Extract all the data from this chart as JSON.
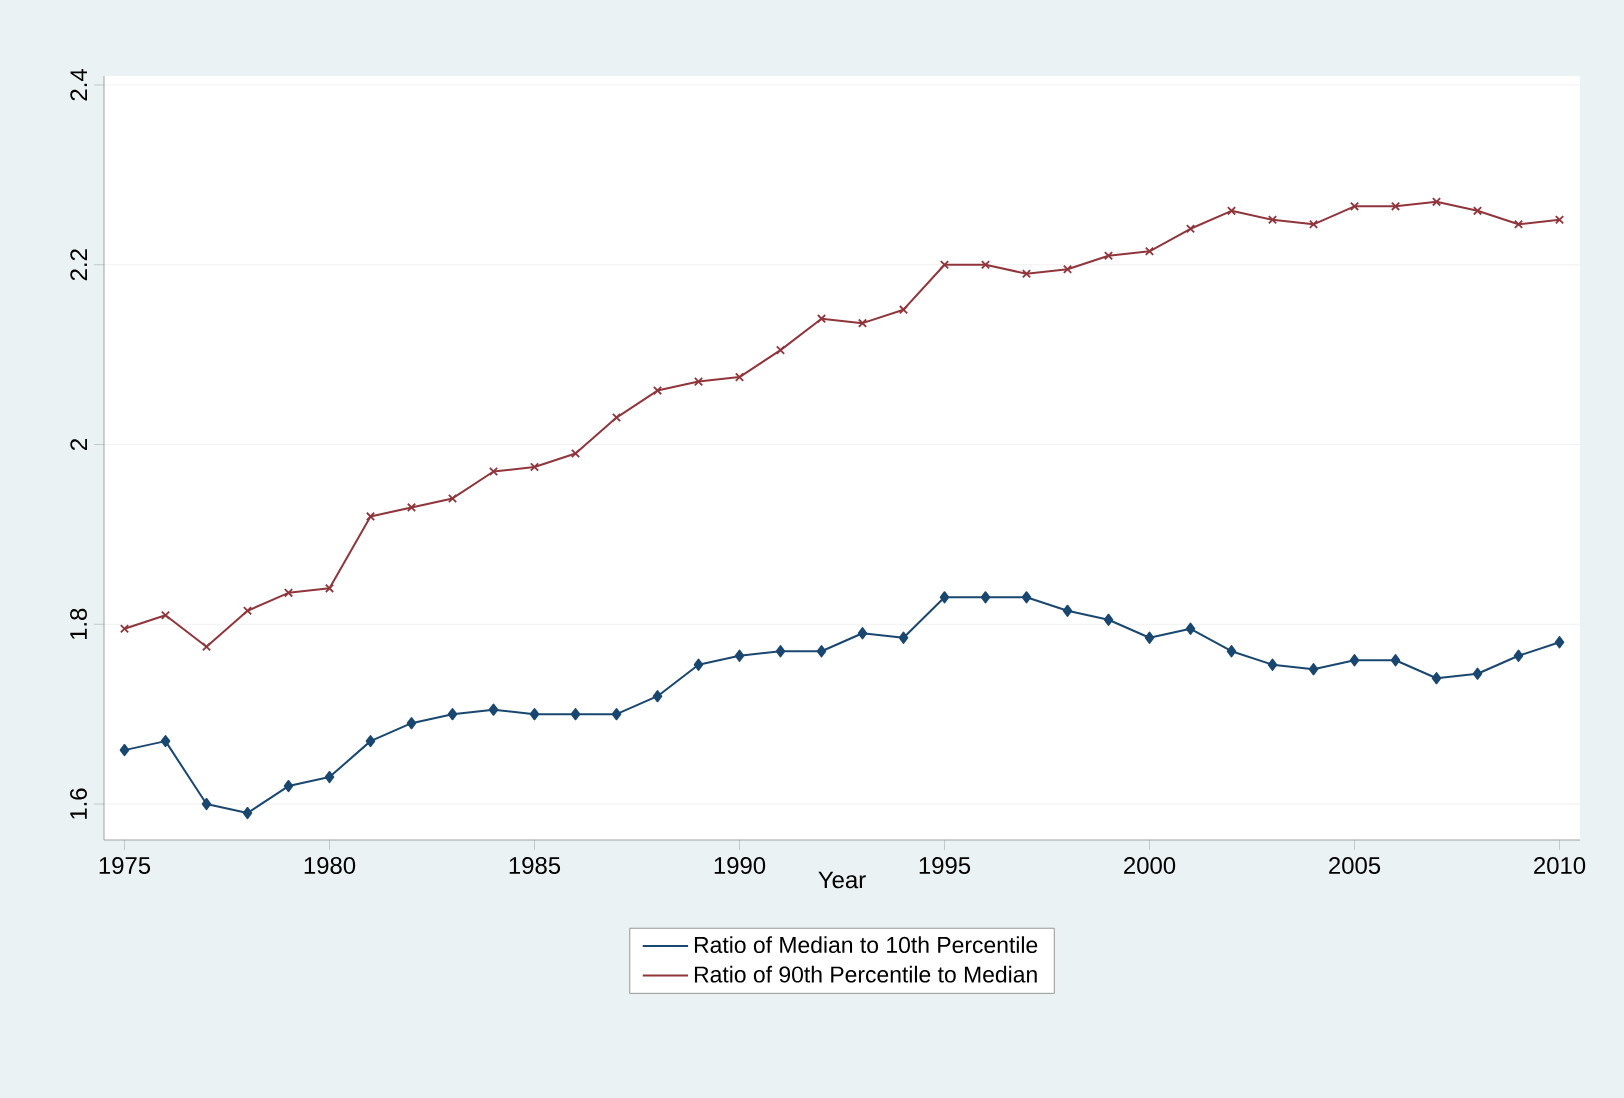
{
  "chart_data": {
    "type": "line",
    "xlabel": "Year",
    "x": [
      1975,
      1976,
      1977,
      1978,
      1979,
      1980,
      1981,
      1982,
      1983,
      1984,
      1985,
      1986,
      1987,
      1988,
      1989,
      1990,
      1991,
      1992,
      1993,
      1994,
      1995,
      1996,
      1997,
      1998,
      1999,
      2000,
      2001,
      2002,
      2003,
      2004,
      2005,
      2006,
      2007,
      2008,
      2009,
      2010
    ],
    "series": [
      {
        "name": "Ratio of Median to 10th Percentile",
        "color": "#1a476f",
        "marker": "diamond",
        "values": [
          1.66,
          1.67,
          1.6,
          1.59,
          1.62,
          1.63,
          1.67,
          1.69,
          1.7,
          1.705,
          1.7,
          1.7,
          1.7,
          1.72,
          1.755,
          1.765,
          1.77,
          1.77,
          1.79,
          1.785,
          1.83,
          1.83,
          1.83,
          1.815,
          1.805,
          1.785,
          1.795,
          1.77,
          1.755,
          1.75,
          1.76,
          1.76,
          1.74,
          1.745,
          1.765,
          1.78
        ]
      },
      {
        "name": "Ratio of 90th Percentile to Median",
        "color": "#90353b",
        "marker": "cross",
        "values": [
          1.795,
          1.81,
          1.775,
          1.815,
          1.835,
          1.84,
          1.92,
          1.93,
          1.94,
          1.97,
          1.975,
          1.99,
          2.03,
          2.06,
          2.07,
          2.075,
          2.105,
          2.14,
          2.135,
          2.15,
          2.2,
          2.2,
          2.19,
          2.195,
          2.21,
          2.215,
          2.24,
          2.26,
          2.25,
          2.245,
          2.265,
          2.265,
          2.27,
          2.26,
          2.245,
          2.25
        ]
      }
    ],
    "xlim": [
      1974.5,
      2010.5
    ],
    "ylim": [
      1.56,
      2.41
    ],
    "xticks": [
      1975,
      1980,
      1985,
      1990,
      1995,
      2000,
      2005,
      2010
    ],
    "yticks": [
      1.6,
      1.8,
      2,
      2.2,
      2.4
    ],
    "grid": "y",
    "legend": "bottom",
    "line_style": "solid"
  }
}
